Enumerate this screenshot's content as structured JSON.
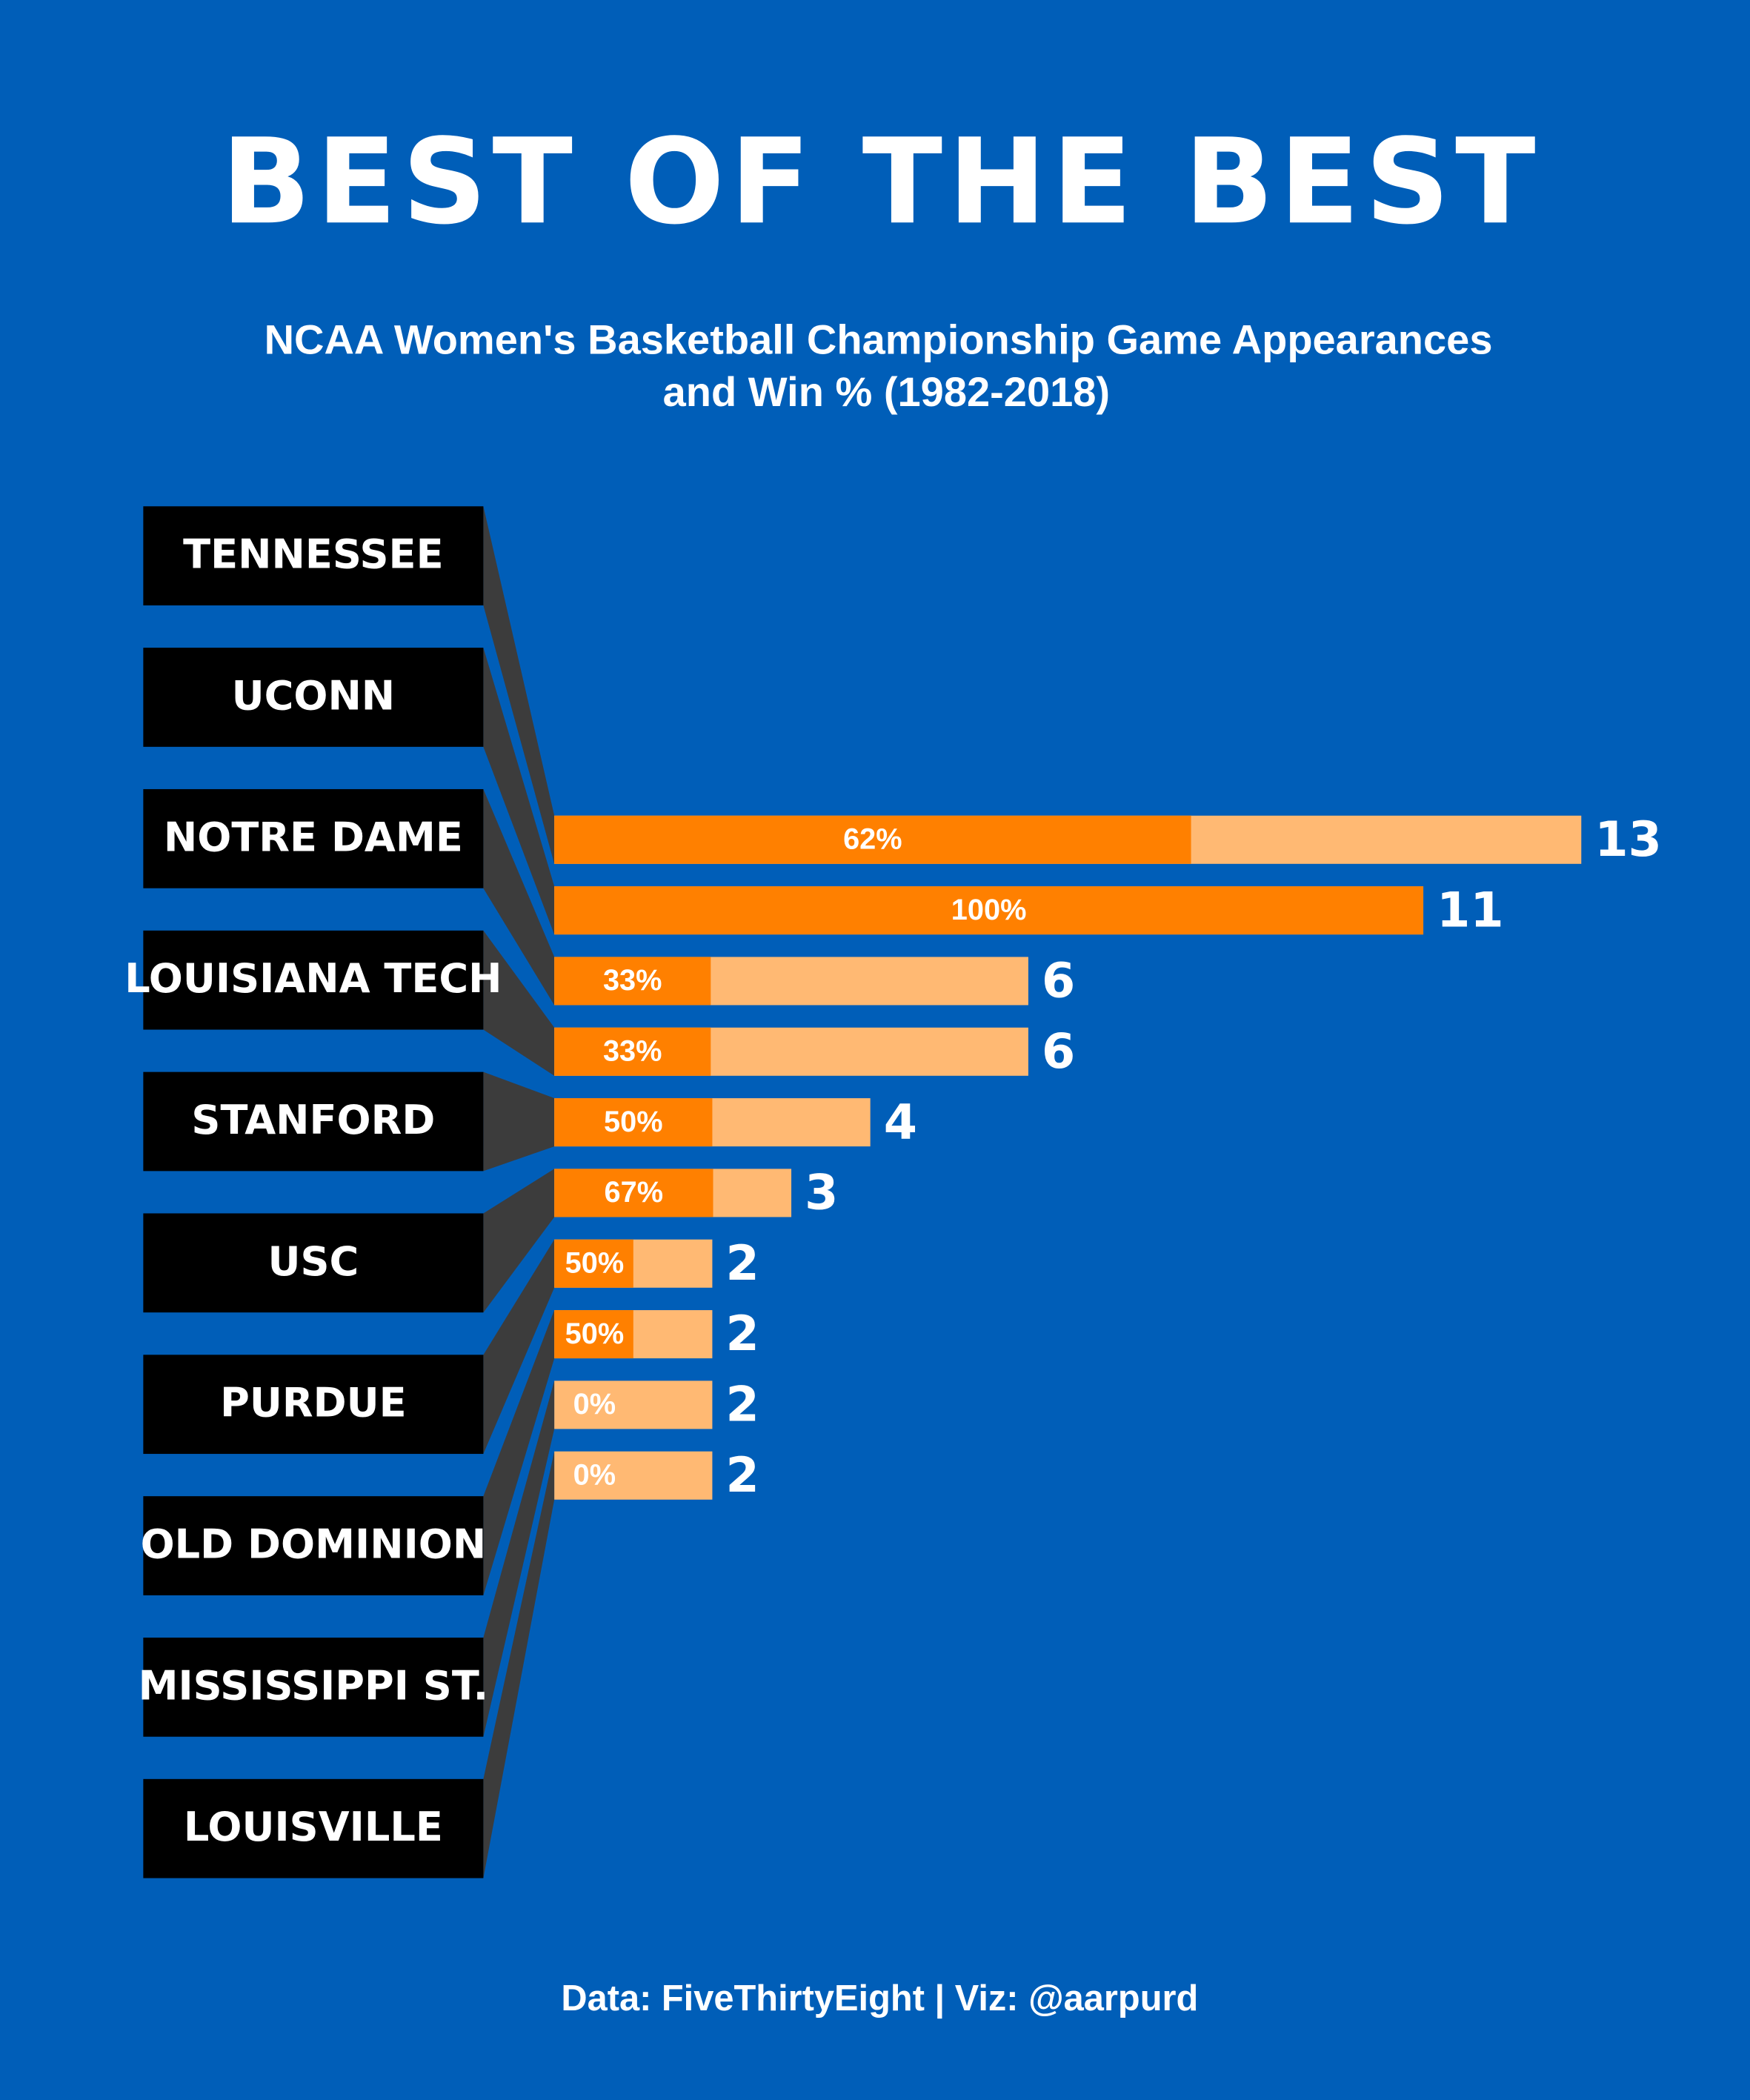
{
  "chart_data": {
    "type": "bar",
    "title": "BEST OF THE BEST",
    "subtitle": [
      "NCAA Women's Basketball Championship Game Appearances",
      "and Win % (1982-2018)"
    ],
    "categories": [
      "TENNESSEE",
      "UCONN",
      "NOTRE DAME",
      "LOUISIANA TECH",
      "STANFORD",
      "USC",
      "PURDUE",
      "OLD DOMINION",
      "MISSISSIPPI ST.",
      "LOUISVILLE"
    ],
    "series": [
      {
        "color": "#ffb973",
        "values": [
          13,
          11,
          6,
          6,
          4,
          3,
          2,
          2,
          2,
          2
        ]
      },
      {
        "color": "#ff8000",
        "values": [
          62,
          100,
          33,
          33,
          50,
          67,
          50,
          50,
          0,
          0
        ],
        "value_labels": [
          "62%",
          "100%",
          "33%",
          "33%",
          "50%",
          "67%",
          "50%",
          "50%",
          "0%",
          "0%"
        ]
      }
    ],
    "source": "Data: FiveThirtyEight | Viz: @aarpurd"
  }
}
